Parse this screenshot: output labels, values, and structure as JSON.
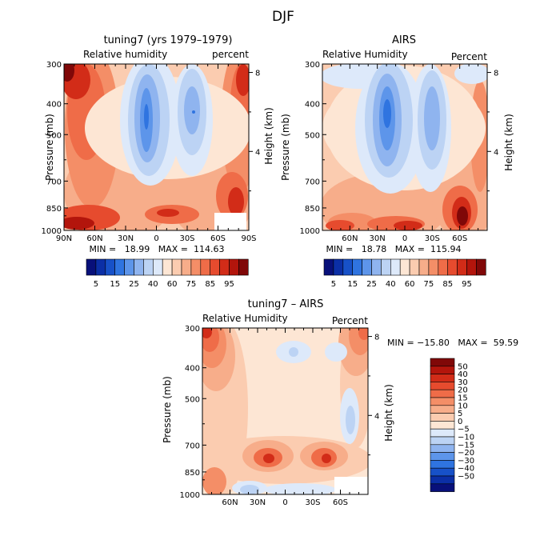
{
  "page_title": "DJF",
  "colors": {
    "blues": [
      "#08107a",
      "#0b2fa6",
      "#1751c8",
      "#2f74e0",
      "#5d95ea",
      "#8fb4ef",
      "#bcd3f4",
      "#dde9fa"
    ],
    "reds": [
      "#fde6d4",
      "#fbccb0",
      "#f7ad8a",
      "#f48e67",
      "#ef6c48",
      "#e64b2e",
      "#d22c18",
      "#b3150c",
      "#800808"
    ]
  },
  "chart_data": [
    {
      "type": "heatmap",
      "title": "tuning7 (yrs 1979–1979)",
      "left_label": "Relative humidity",
      "right_label": "percent",
      "ylabel": "Pressure (mb)",
      "y2label": "Height (km)",
      "ylim": [
        300,
        1000
      ],
      "xlim": [
        90,
        -90
      ],
      "x_ticks": [
        "90N",
        "60N",
        "30N",
        "0",
        "30S",
        "60S",
        "90S"
      ],
      "y_ticks": [
        300,
        400,
        500,
        700,
        850,
        1000
      ],
      "y2_ticks": [
        8,
        4
      ],
      "min": "18.99",
      "max": "114.63",
      "stats": "MIN =   18.99   MAX =  114.63",
      "colorbar": {
        "orientation": "horizontal",
        "labels": [
          "5",
          "15",
          "25",
          "40",
          "60",
          "75",
          "85",
          "95"
        ]
      }
    },
    {
      "type": "heatmap",
      "title": "AIRS",
      "left_label": "Relative Humidity",
      "right_label": "Percent",
      "ylabel": "Pressure (mb)",
      "y2label": "Height (km)",
      "ylim": [
        300,
        1000
      ],
      "xlim": [
        90,
        -90
      ],
      "x_ticks": [
        "60N",
        "30N",
        "0",
        "30S",
        "60S"
      ],
      "y_ticks": [
        300,
        400,
        500,
        700,
        850,
        1000
      ],
      "y2_ticks": [
        8,
        4
      ],
      "min": "18.78",
      "max": "115.94",
      "stats": "MIN =   18.78   MAX =  115.94",
      "colorbar": {
        "orientation": "horizontal",
        "labels": [
          "5",
          "15",
          "25",
          "40",
          "60",
          "75",
          "85",
          "95"
        ]
      }
    },
    {
      "type": "heatmap",
      "title": "tuning7 – AIRS",
      "left_label": "Relative Humidity",
      "right_label": "Percent",
      "ylabel": "Pressure (mb)",
      "y2label": "Height (km)",
      "ylim": [
        300,
        1000
      ],
      "xlim": [
        90,
        -90
      ],
      "x_ticks": [
        "60N",
        "30N",
        "0",
        "30S",
        "60S"
      ],
      "y_ticks": [
        300,
        400,
        500,
        700,
        850,
        1000
      ],
      "y2_ticks": [
        8,
        4
      ],
      "min": "−15.80",
      "max": "59.59",
      "stats": "MIN = −15.80   MAX =  59.59",
      "colorbar": {
        "orientation": "vertical",
        "labels": [
          "50",
          "40",
          "30",
          "20",
          "15",
          "10",
          "5",
          "0",
          "−5",
          "−10",
          "−15",
          "−20",
          "−30",
          "−40",
          "−50"
        ]
      }
    }
  ]
}
